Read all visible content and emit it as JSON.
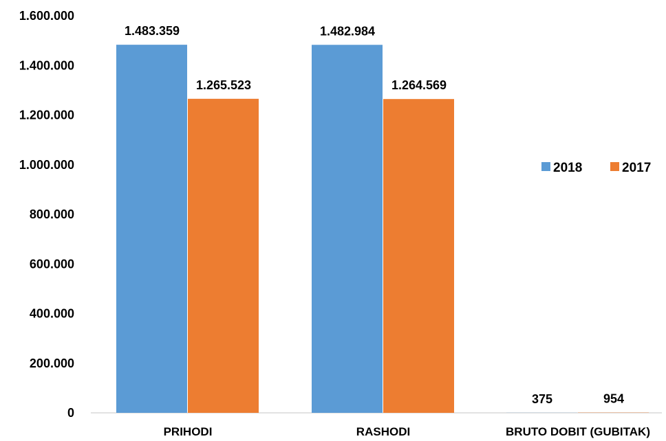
{
  "chart_data": {
    "type": "bar",
    "title": "",
    "xlabel": "",
    "ylabel": "",
    "categories": [
      "PRIHODI",
      "RASHODI",
      "BRUTO DOBIT (GUBITAK)"
    ],
    "series": [
      {
        "name": "2018",
        "color": "#5B9BD5",
        "values": [
          1483359,
          1482984,
          375
        ],
        "labels": [
          "1.483.359",
          "1.482.984",
          "375"
        ]
      },
      {
        "name": "2017",
        "color": "#ED7D31",
        "values": [
          1265523,
          1264569,
          954
        ],
        "labels": [
          "1.265.523",
          "1.264.569",
          "954"
        ]
      }
    ],
    "ylim": [
      0,
      1600000
    ],
    "yticks": [
      0,
      200000,
      400000,
      600000,
      800000,
      1000000,
      1200000,
      1400000,
      1600000
    ],
    "ytick_labels": [
      "0",
      "200.000",
      "400.000",
      "600.000",
      "800.000",
      "1.000.000",
      "1.200.000",
      "1.400.000",
      "1.600.000"
    ],
    "grid": false,
    "legend_position": "right"
  }
}
